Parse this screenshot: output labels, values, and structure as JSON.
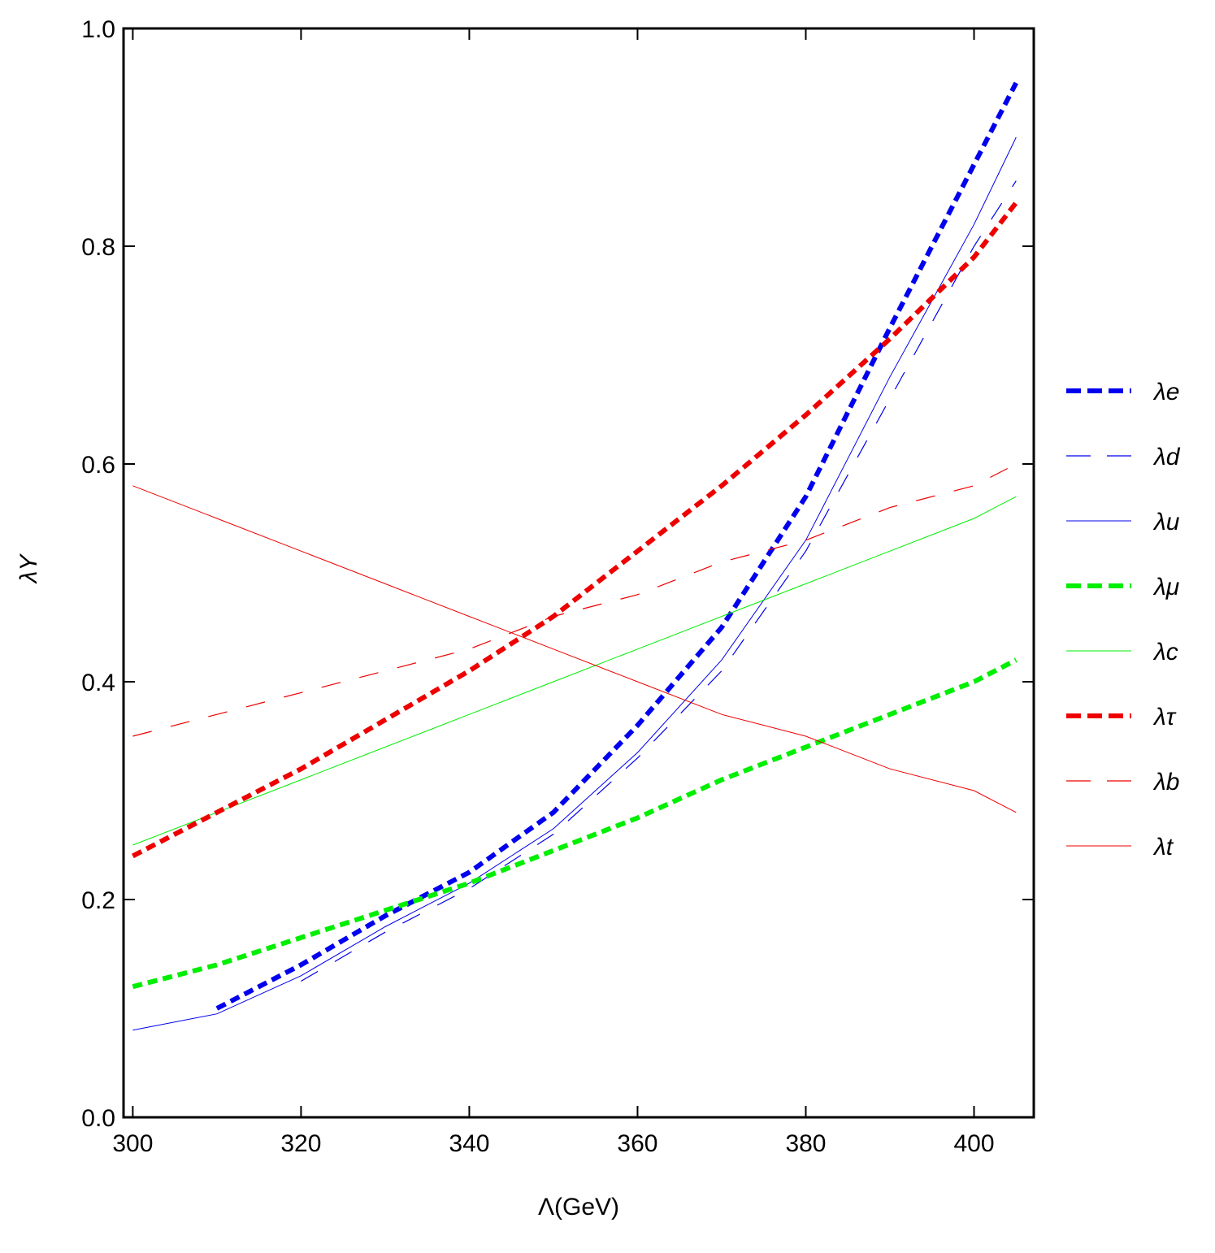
{
  "chart_data": {
    "type": "line",
    "x_label": "Λ(GeV)",
    "y_label": "λY",
    "xlim": [
      298.9,
      407.1
    ],
    "ylim": [
      0,
      1
    ],
    "xticks": [
      300,
      320,
      340,
      360,
      380,
      400
    ],
    "yticks": [
      {
        "value": 0,
        "label": "0.0"
      },
      0.2,
      0.4,
      0.6,
      0.8,
      {
        "value": 1,
        "label": "1.0"
      }
    ],
    "x": [
      300,
      310,
      320,
      330,
      340,
      350,
      360,
      370,
      380,
      390,
      400,
      405
    ],
    "legend": "right",
    "series": [
      {
        "name": "λe",
        "color": "#0000ee",
        "style": "thick-dashed",
        "values": [
          null,
          0.1,
          0.14,
          0.185,
          0.225,
          0.28,
          0.36,
          0.45,
          0.57,
          0.725,
          0.875,
          0.95
        ]
      },
      {
        "name": "λd",
        "color": "#0000ee",
        "style": "dashed",
        "values": [
          null,
          null,
          0.125,
          0.17,
          0.21,
          0.26,
          0.33,
          0.41,
          0.52,
          0.66,
          0.8,
          0.86
        ]
      },
      {
        "name": "λu",
        "color": "#0000ee",
        "style": "solid",
        "values": [
          0.08,
          0.095,
          0.13,
          0.175,
          0.215,
          0.265,
          0.335,
          0.42,
          0.53,
          0.68,
          0.82,
          0.9
        ]
      },
      {
        "name": "λμ",
        "color": "#00ee00",
        "style": "thick-dashed",
        "values": [
          0.12,
          0.14,
          0.165,
          0.19,
          0.215,
          0.245,
          0.275,
          0.31,
          0.34,
          0.37,
          0.4,
          0.42
        ]
      },
      {
        "name": "λc",
        "color": "#00ee00",
        "style": "solid",
        "values": [
          0.25,
          0.28,
          0.31,
          0.34,
          0.37,
          0.4,
          0.43,
          0.46,
          0.49,
          0.52,
          0.55,
          0.57
        ]
      },
      {
        "name": "λτ",
        "color": "#ee0000",
        "style": "thick-dashed",
        "values": [
          0.24,
          0.28,
          0.32,
          0.365,
          0.41,
          0.46,
          0.52,
          0.58,
          0.645,
          0.715,
          0.79,
          0.84
        ]
      },
      {
        "name": "λb",
        "color": "#ee0000",
        "style": "dashed",
        "values": [
          0.35,
          0.37,
          0.39,
          0.41,
          0.43,
          0.46,
          0.48,
          0.51,
          0.53,
          0.56,
          0.58,
          0.6
        ]
      },
      {
        "name": "λt",
        "color": "#ee0000",
        "style": "solid",
        "values": [
          0.58,
          0.55,
          0.52,
          0.49,
          0.46,
          0.43,
          0.4,
          0.37,
          0.35,
          0.32,
          0.3,
          0.28
        ]
      }
    ]
  }
}
